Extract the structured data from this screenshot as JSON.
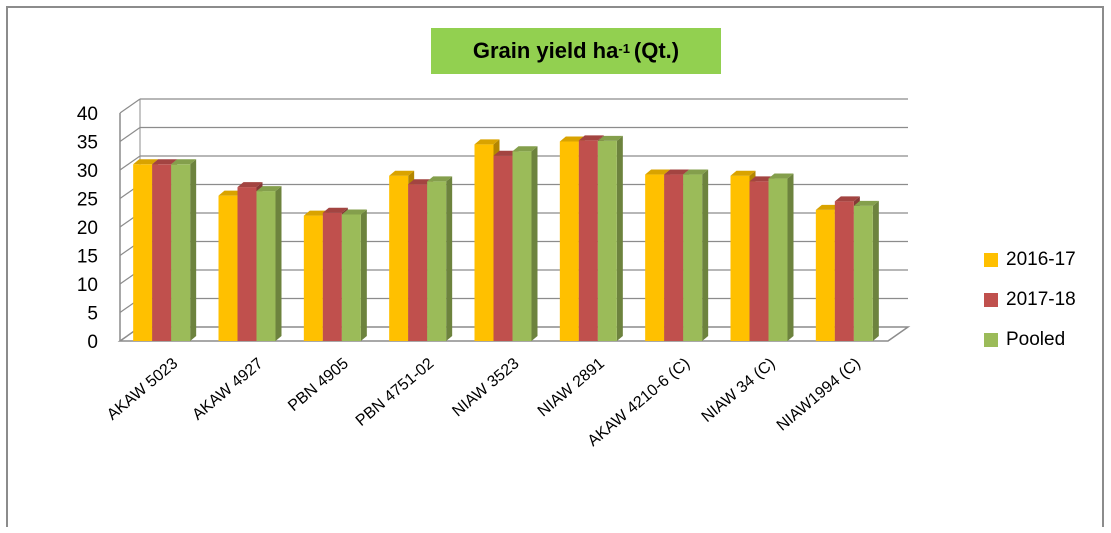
{
  "chart_data": {
    "type": "bar",
    "title_main": "Grain yield ha",
    "title_sup": "-1",
    "title_end": "(Qt.)",
    "categories": [
      "AKAW 5023",
      "AKAW 4927",
      "PBN 4905",
      "PBN 4751-02",
      "NIAW 3523",
      "NIAW 2891",
      "AKAW 4210-6 (C)",
      "NIAW 34  (C)",
      "NIAW1994 (C)"
    ],
    "series": [
      {
        "name": "2016-17",
        "color": "#ffc000",
        "values": [
          31.0,
          25.5,
          22.0,
          29.0,
          34.5,
          35.0,
          29.2,
          29.0,
          23.0
        ]
      },
      {
        "name": "2017-18",
        "color": "#c0504d",
        "values": [
          31.0,
          27.0,
          22.5,
          27.5,
          32.5,
          35.2,
          29.2,
          28.0,
          24.5
        ]
      },
      {
        "name": "Pooled",
        "color": "#9bbb59",
        "values": [
          31.0,
          26.3,
          22.2,
          28.0,
          33.3,
          35.1,
          29.2,
          28.5,
          23.7
        ]
      }
    ],
    "yticks": [
      "0",
      "5",
      "10",
      "15",
      "20",
      "25",
      "30",
      "35",
      "40"
    ],
    "ylim": [
      0,
      40
    ],
    "grid": true,
    "legend_position": "right"
  }
}
